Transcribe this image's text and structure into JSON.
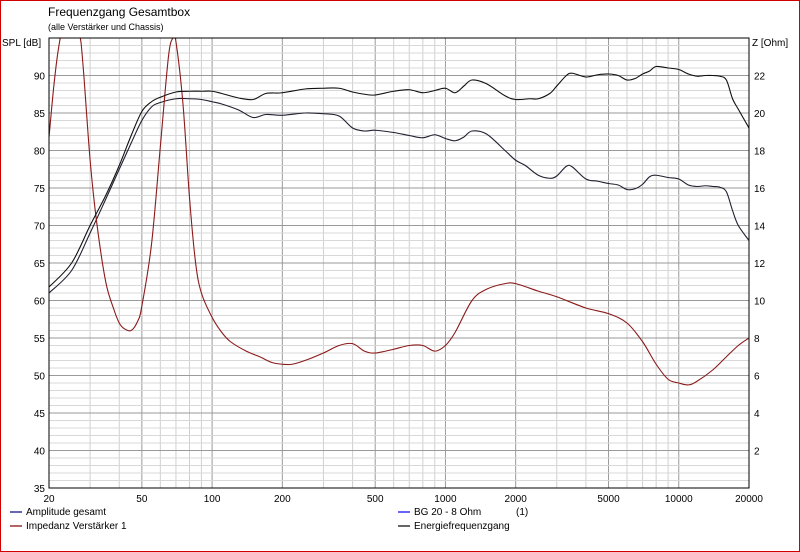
{
  "chart_data": {
    "type": "line",
    "title": "Frequenzgang Gesamtbox",
    "subtitle": "(alle Verstärker und Chassis)",
    "ylabel": "SPL [dB]",
    "y2label": "Z [Ohm]",
    "x_scale": "log",
    "xlim": [
      20,
      20000
    ],
    "ylim": [
      35,
      95
    ],
    "y2lim": [
      0,
      24
    ],
    "x_ticks": [
      20,
      50,
      100,
      200,
      500,
      1000,
      2000,
      5000,
      10000,
      20000
    ],
    "y_ticks": [
      35,
      40,
      45,
      50,
      55,
      60,
      65,
      70,
      75,
      80,
      85,
      90
    ],
    "y2_ticks": [
      2,
      4,
      6,
      8,
      10,
      12,
      14,
      16,
      18,
      20,
      22
    ],
    "grid": true,
    "legend": [
      {
        "label": "Amplitude gesamt",
        "color": "#000080",
        "extra": ""
      },
      {
        "label": "Impedanz Verstärker 1",
        "color": "#800000",
        "extra": ""
      },
      {
        "label": "BG 20 - 8 Ohm",
        "color": "#0000ff",
        "extra": "(1)"
      },
      {
        "label": "Energiefrequenzgang",
        "color": "#000000",
        "extra": ""
      }
    ],
    "series": [
      {
        "name": "Amplitude gesamt",
        "axis": "left",
        "color": "#202030",
        "x": [
          20,
          25,
          30,
          35,
          40,
          45,
          50,
          55,
          60,
          70,
          80,
          90,
          100,
          110,
          130,
          150,
          170,
          200,
          250,
          300,
          350,
          400,
          450,
          500,
          600,
          700,
          800,
          900,
          1000,
          1100,
          1200,
          1300,
          1500,
          1800,
          2000,
          2200,
          2500,
          2800,
          3000,
          3300,
          3500,
          4000,
          4500,
          5000,
          5500,
          6000,
          6500,
          7000,
          7500,
          8000,
          9000,
          10000,
          11000,
          12000,
          13000,
          14000,
          15000,
          16000,
          17000,
          18000,
          20000
        ],
        "y": [
          61,
          64,
          69,
          73.5,
          77.5,
          81,
          84,
          85.8,
          86.4,
          86.9,
          86.9,
          86.8,
          86.5,
          86.2,
          85.4,
          84.4,
          84.8,
          84.7,
          85.0,
          84.9,
          84.6,
          83.0,
          82.6,
          82.7,
          82.4,
          82.0,
          81.7,
          82.1,
          81.6,
          81.3,
          81.8,
          82.6,
          82.2,
          80.0,
          78.7,
          78.0,
          76.7,
          76.3,
          76.6,
          77.9,
          77.8,
          76.2,
          75.9,
          75.6,
          75.4,
          74.8,
          74.9,
          75.5,
          76.5,
          76.7,
          76.4,
          76.2,
          75.4,
          75.2,
          75.3,
          75.2,
          75.1,
          74.5,
          72.0,
          70.0,
          68.0
        ]
      },
      {
        "name": "Impedanz Verstärker 1",
        "axis": "right",
        "color": "#8b1a1a",
        "x": [
          20,
          21,
          22,
          23,
          25,
          27,
          28,
          30,
          32,
          35,
          38,
          40,
          42,
          45,
          48,
          50,
          55,
          60,
          65,
          68,
          70,
          75,
          80,
          85,
          90,
          100,
          110,
          120,
          140,
          160,
          180,
          200,
          220,
          250,
          300,
          350,
          400,
          450,
          500,
          600,
          700,
          800,
          900,
          1000,
          1100,
          1300,
          1500,
          1800,
          2000,
          2500,
          3000,
          4000,
          5000,
          6000,
          7000,
          8000,
          9000,
          10000,
          11000,
          12000,
          14000,
          16000,
          18000,
          20000
        ],
        "y": [
          18.7,
          21.5,
          23.5,
          24.5,
          24.8,
          24.2,
          22.5,
          17.5,
          14.2,
          11.0,
          9.5,
          8.8,
          8.5,
          8.4,
          8.9,
          9.7,
          13.0,
          18.2,
          23.0,
          24.0,
          23.8,
          20.5,
          15.5,
          12.0,
          10.4,
          9.1,
          8.3,
          7.8,
          7.3,
          7.0,
          6.7,
          6.6,
          6.6,
          6.8,
          7.2,
          7.6,
          7.7,
          7.3,
          7.2,
          7.4,
          7.6,
          7.6,
          7.3,
          7.6,
          8.3,
          10.0,
          10.6,
          10.9,
          10.9,
          10.5,
          10.2,
          9.6,
          9.3,
          8.8,
          7.8,
          6.6,
          5.8,
          5.6,
          5.5,
          5.7,
          6.3,
          7.0,
          7.6,
          8.0
        ]
      },
      {
        "name": "Energiefrequenzgang",
        "axis": "left",
        "color": "#101010",
        "x": [
          20,
          25,
          30,
          35,
          40,
          45,
          50,
          55,
          60,
          70,
          80,
          90,
          100,
          110,
          130,
          150,
          170,
          200,
          250,
          300,
          350,
          400,
          450,
          500,
          600,
          700,
          800,
          900,
          1000,
          1100,
          1200,
          1300,
          1500,
          1800,
          2000,
          2300,
          2500,
          2800,
          3000,
          3300,
          3500,
          4000,
          4500,
          5000,
          5500,
          6000,
          6500,
          7000,
          7500,
          8000,
          9000,
          10000,
          11000,
          12000,
          13000,
          14000,
          15000,
          16000,
          17000,
          18000,
          20000
        ],
        "y": [
          61.8,
          65,
          70,
          74,
          78,
          82,
          85.2,
          86.5,
          87.1,
          87.8,
          87.9,
          87.9,
          87.9,
          87.6,
          87.0,
          86.8,
          87.6,
          87.7,
          88.2,
          88.3,
          88.3,
          87.8,
          87.5,
          87.4,
          87.9,
          88.1,
          87.7,
          88.0,
          88.3,
          87.7,
          88.6,
          89.4,
          88.9,
          87.3,
          86.8,
          86.9,
          86.9,
          87.6,
          88.6,
          90.0,
          90.3,
          89.8,
          90.1,
          90.2,
          90.0,
          89.4,
          89.6,
          90.2,
          90.6,
          91.2,
          91.0,
          90.8,
          90.2,
          89.9,
          90.0,
          90.0,
          89.9,
          89.4,
          86.9,
          85.5,
          83.0
        ]
      }
    ]
  }
}
